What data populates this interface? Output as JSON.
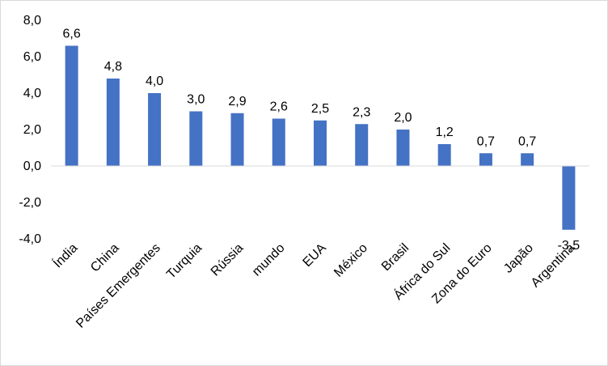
{
  "chart_data": {
    "type": "bar",
    "categories": [
      "Índia",
      "China",
      "Países Emergentes",
      "Turquia",
      "Rússia",
      "mundo",
      "EUA",
      "México",
      "Brasil",
      "África do Sul",
      "Zona do Euro",
      "Japão",
      "Argentina"
    ],
    "values": [
      6.6,
      4.8,
      4.0,
      3.0,
      2.9,
      2.6,
      2.5,
      2.3,
      2.0,
      1.2,
      0.7,
      0.7,
      -3.5
    ],
    "value_labels": [
      "6,6",
      "4,8",
      "4,0",
      "3,0",
      "2,9",
      "2,6",
      "2,5",
      "2,3",
      "2,0",
      "1,2",
      "0,7",
      "0,7",
      "-3,5"
    ],
    "title": "",
    "xlabel": "",
    "ylabel": "",
    "ylim": [
      -4,
      8
    ],
    "y_ticks": [
      8,
      6,
      4,
      2,
      0,
      -2,
      -4
    ],
    "y_tick_labels": [
      "8,0",
      "6,0",
      "4,0",
      "2,0",
      "0,0",
      "-2,0",
      "-4,0"
    ],
    "grid": false,
    "bar_color": "#4472c4",
    "axis_color": "#d9d9d9"
  }
}
